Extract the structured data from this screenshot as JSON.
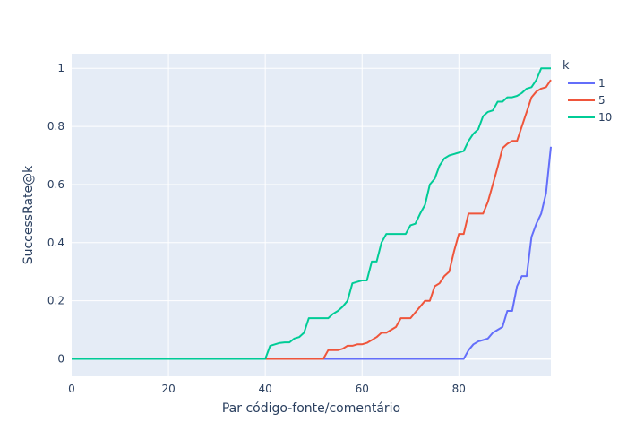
{
  "chart_data": {
    "type": "line",
    "xlabel": "Par código-fonte/comentário",
    "ylabel": "SuccessRate@k",
    "xlim": [
      0,
      99
    ],
    "ylim": [
      -0.06,
      1.05
    ],
    "x_ticks": [
      0,
      20,
      40,
      60,
      80
    ],
    "x_tick_labels": [
      "0",
      "20",
      "40",
      "60",
      "80"
    ],
    "y_ticks": [
      0,
      0.2,
      0.4,
      0.6,
      0.8,
      1
    ],
    "y_tick_labels": [
      "0",
      "0.2",
      "0.4",
      "0.6",
      "0.8",
      "1"
    ],
    "grid": true,
    "legend_position": "top-right",
    "legend_title": "k",
    "series": [
      {
        "name": "1",
        "color": "#636efa",
        "points": [
          [
            0,
            0
          ],
          [
            81,
            0
          ],
          [
            82,
            0.03
          ],
          [
            83,
            0.05
          ],
          [
            84,
            0.06
          ],
          [
            85,
            0.065
          ],
          [
            86,
            0.07
          ],
          [
            87,
            0.09
          ],
          [
            88,
            0.1
          ],
          [
            89,
            0.11
          ],
          [
            90,
            0.165
          ],
          [
            91,
            0.165
          ],
          [
            92,
            0.25
          ],
          [
            93,
            0.285
          ],
          [
            94,
            0.285
          ],
          [
            95,
            0.42
          ],
          [
            96,
            0.465
          ],
          [
            97,
            0.5
          ],
          [
            98,
            0.57
          ],
          [
            99,
            0.73
          ]
        ]
      },
      {
        "name": "5",
        "color": "#ef553b",
        "points": [
          [
            0,
            0
          ],
          [
            52,
            0
          ],
          [
            53,
            0.03
          ],
          [
            54,
            0.03
          ],
          [
            55,
            0.03
          ],
          [
            56,
            0.035
          ],
          [
            57,
            0.045
          ],
          [
            58,
            0.045
          ],
          [
            59,
            0.05
          ],
          [
            60,
            0.05
          ],
          [
            61,
            0.055
          ],
          [
            62,
            0.065
          ],
          [
            63,
            0.075
          ],
          [
            64,
            0.09
          ],
          [
            65,
            0.09
          ],
          [
            66,
            0.1
          ],
          [
            67,
            0.11
          ],
          [
            68,
            0.14
          ],
          [
            69,
            0.14
          ],
          [
            70,
            0.14
          ],
          [
            71,
            0.16
          ],
          [
            72,
            0.18
          ],
          [
            73,
            0.2
          ],
          [
            74,
            0.2
          ],
          [
            75,
            0.25
          ],
          [
            76,
            0.26
          ],
          [
            77,
            0.285
          ],
          [
            78,
            0.3
          ],
          [
            79,
            0.37
          ],
          [
            80,
            0.43
          ],
          [
            81,
            0.43
          ],
          [
            82,
            0.5
          ],
          [
            83,
            0.5
          ],
          [
            84,
            0.5
          ],
          [
            85,
            0.5
          ],
          [
            86,
            0.54
          ],
          [
            87,
            0.6
          ],
          [
            88,
            0.66
          ],
          [
            89,
            0.725
          ],
          [
            90,
            0.74
          ],
          [
            91,
            0.75
          ],
          [
            92,
            0.75
          ],
          [
            93,
            0.8
          ],
          [
            94,
            0.85
          ],
          [
            95,
            0.9
          ],
          [
            96,
            0.92
          ],
          [
            97,
            0.93
          ],
          [
            98,
            0.935
          ],
          [
            99,
            0.96
          ]
        ]
      },
      {
        "name": "10",
        "color": "#00cc96",
        "points": [
          [
            0,
            0
          ],
          [
            40,
            0
          ],
          [
            41,
            0.045
          ],
          [
            42,
            0.05
          ],
          [
            43,
            0.055
          ],
          [
            44,
            0.057
          ],
          [
            45,
            0.057
          ],
          [
            46,
            0.07
          ],
          [
            47,
            0.075
          ],
          [
            48,
            0.09
          ],
          [
            49,
            0.14
          ],
          [
            50,
            0.14
          ],
          [
            51,
            0.14
          ],
          [
            52,
            0.14
          ],
          [
            53,
            0.14
          ],
          [
            54,
            0.155
          ],
          [
            55,
            0.165
          ],
          [
            56,
            0.18
          ],
          [
            57,
            0.2
          ],
          [
            58,
            0.26
          ],
          [
            59,
            0.265
          ],
          [
            60,
            0.27
          ],
          [
            61,
            0.27
          ],
          [
            62,
            0.335
          ],
          [
            63,
            0.335
          ],
          [
            64,
            0.4
          ],
          [
            65,
            0.43
          ],
          [
            66,
            0.43
          ],
          [
            67,
            0.43
          ],
          [
            68,
            0.43
          ],
          [
            69,
            0.43
          ],
          [
            70,
            0.46
          ],
          [
            71,
            0.465
          ],
          [
            72,
            0.5
          ],
          [
            73,
            0.53
          ],
          [
            74,
            0.6
          ],
          [
            75,
            0.62
          ],
          [
            76,
            0.665
          ],
          [
            77,
            0.69
          ],
          [
            78,
            0.7
          ],
          [
            79,
            0.705
          ],
          [
            80,
            0.71
          ],
          [
            81,
            0.715
          ],
          [
            82,
            0.75
          ],
          [
            83,
            0.775
          ],
          [
            84,
            0.79
          ],
          [
            85,
            0.835
          ],
          [
            86,
            0.85
          ],
          [
            87,
            0.855
          ],
          [
            88,
            0.885
          ],
          [
            89,
            0.885
          ],
          [
            90,
            0.9
          ],
          [
            91,
            0.9
          ],
          [
            92,
            0.905
          ],
          [
            93,
            0.915
          ],
          [
            94,
            0.93
          ],
          [
            95,
            0.935
          ],
          [
            96,
            0.96
          ],
          [
            97,
            1
          ],
          [
            98,
            1
          ],
          [
            99,
            1
          ]
        ]
      }
    ]
  }
}
